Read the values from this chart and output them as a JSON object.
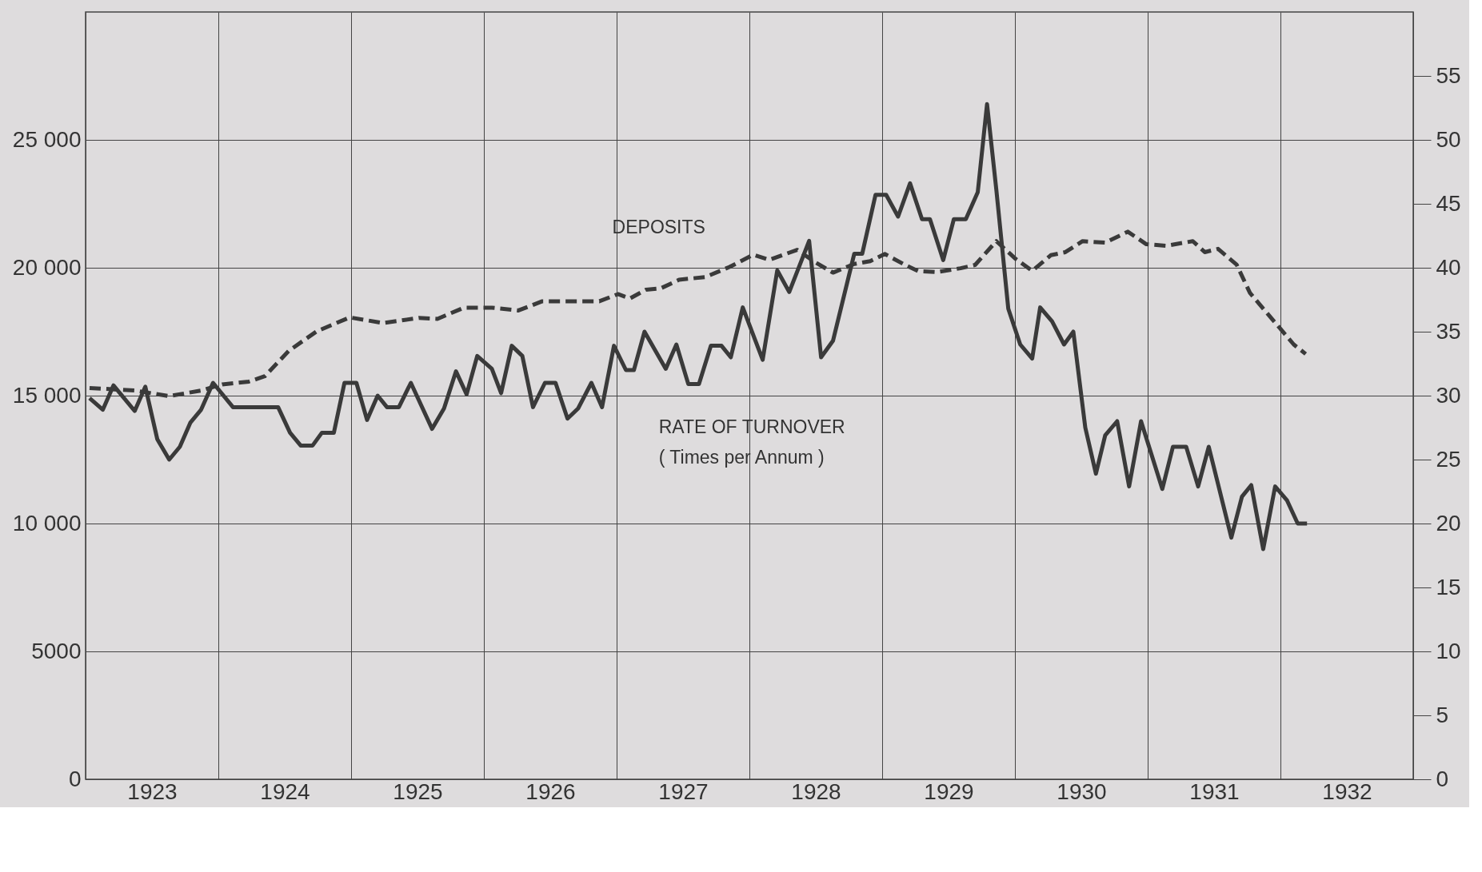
{
  "chart_data": {
    "type": "line",
    "xlim": [
      1923,
      1933
    ],
    "xticks": [
      {
        "value": 1923,
        "label": null
      },
      {
        "value": 1923.5,
        "label": "1923"
      },
      {
        "value": 1924,
        "label": null
      },
      {
        "value": 1924.5,
        "label": "1924"
      },
      {
        "value": 1925,
        "label": null
      },
      {
        "value": 1925.5,
        "label": "1925"
      },
      {
        "value": 1926,
        "label": null
      },
      {
        "value": 1926.5,
        "label": "1926"
      },
      {
        "value": 1927,
        "label": null
      },
      {
        "value": 1927.5,
        "label": "1927"
      },
      {
        "value": 1928,
        "label": null
      },
      {
        "value": 1928.5,
        "label": "1928"
      },
      {
        "value": 1929,
        "label": null
      },
      {
        "value": 1929.5,
        "label": "1929"
      },
      {
        "value": 1930,
        "label": null
      },
      {
        "value": 1930.5,
        "label": "1930"
      },
      {
        "value": 1931,
        "label": null
      },
      {
        "value": 1931.5,
        "label": "1931"
      },
      {
        "value": 1932,
        "label": null
      },
      {
        "value": 1932.5,
        "label": "1932"
      },
      {
        "value": 1933,
        "label": null
      }
    ],
    "ylim": [
      0,
      30000
    ],
    "yticks": [
      0,
      5000,
      {
        "value": 10000,
        "label": "10 000"
      },
      {
        "value": 15000,
        "label": "15 000"
      },
      {
        "value": 20000,
        "label": "20 000"
      },
      {
        "value": 25000,
        "label": "25 000"
      }
    ],
    "y2lim": [
      0,
      60
    ],
    "y2ticks": [
      0,
      5,
      10,
      15,
      20,
      25,
      30,
      35,
      40,
      45,
      50,
      55
    ],
    "grid": true,
    "series": [
      {
        "name": "DEPOSITS",
        "color": "#3a3a3a",
        "line_style": "dashed",
        "x": [
          1923.03,
          1923.37,
          1923.63,
          1923.87,
          1924.03,
          1924.23,
          1924.35,
          1924.53,
          1924.74,
          1924.99,
          1925.24,
          1925.51,
          1925.65,
          1925.85,
          1926.06,
          1926.26,
          1926.44,
          1926.6,
          1926.87,
          1927.01,
          1927.1,
          1927.22,
          1927.33,
          1927.47,
          1927.67,
          1927.85,
          1928.03,
          1928.15,
          1928.36,
          1928.5,
          1928.63,
          1928.79,
          1928.91,
          1929.02,
          1929.18,
          1929.27,
          1929.41,
          1929.59,
          1929.7,
          1929.86,
          1930.0,
          1930.13,
          1930.27,
          1930.38,
          1930.51,
          1930.68,
          1930.85,
          1930.99,
          1931.14,
          1931.34,
          1931.43,
          1931.53,
          1931.67,
          1931.77,
          1931.9,
          1932.0,
          1932.1,
          1932.19
        ],
        "values": [
          15300,
          15200,
          14980,
          15200,
          15440,
          15550,
          15760,
          16750,
          17510,
          18060,
          17840,
          18040,
          18000,
          18440,
          18440,
          18330,
          18690,
          18690,
          18690,
          18970,
          18800,
          19140,
          19190,
          19530,
          19640,
          20030,
          20510,
          20310,
          20700,
          20200,
          19810,
          20150,
          20260,
          20540,
          20090,
          19870,
          19830,
          19980,
          20110,
          21040,
          20370,
          19880,
          20490,
          20610,
          21040,
          20980,
          21410,
          20920,
          20860,
          21040,
          20610,
          20740,
          20120,
          19020,
          18220,
          17610,
          17000,
          16630
        ]
      },
      {
        "name": "RATE OF TURNOVER\n( Times per Annum )",
        "color": "#3a3a3a",
        "line_style": "solid",
        "axis": "y2",
        "x": [
          1923.03,
          1923.13,
          1923.21,
          1923.37,
          1923.45,
          1923.54,
          1923.63,
          1923.71,
          1923.79,
          1923.87,
          1923.96,
          1924.11,
          1924.45,
          1924.54,
          1924.62,
          1924.71,
          1924.78,
          1924.87,
          1924.95,
          1925.04,
          1925.12,
          1925.2,
          1925.27,
          1925.36,
          1925.45,
          1925.61,
          1925.7,
          1925.79,
          1925.87,
          1925.95,
          1926.06,
          1926.13,
          1926.21,
          1926.29,
          1926.37,
          1926.46,
          1926.54,
          1926.63,
          1926.71,
          1926.81,
          1926.89,
          1926.98,
          1927.07,
          1927.13,
          1927.21,
          1927.37,
          1927.45,
          1927.54,
          1927.62,
          1927.71,
          1927.79,
          1927.86,
          1927.95,
          1928.1,
          1928.21,
          1928.3,
          1928.45,
          1928.54,
          1928.63,
          1928.79,
          1928.85,
          1928.95,
          1929.03,
          1929.12,
          1929.21,
          1929.3,
          1929.36,
          1929.46,
          1929.54,
          1929.63,
          1929.72,
          1929.79,
          1929.86,
          1929.95,
          1930.04,
          1930.13,
          1930.19,
          1930.28,
          1930.37,
          1930.44,
          1930.53,
          1930.61,
          1930.68,
          1930.77,
          1930.86,
          1930.95,
          1931.11,
          1931.19,
          1931.29,
          1931.38,
          1931.46,
          1931.63,
          1931.71,
          1931.78,
          1931.87,
          1931.96,
          1932.05,
          1932.13,
          1932.2
        ],
        "values": [
          29.8,
          28.9,
          30.8,
          28.8,
          30.7,
          26.6,
          25.0,
          26.0,
          27.9,
          28.9,
          31.0,
          29.1,
          29.1,
          27.1,
          26.1,
          26.1,
          27.1,
          27.1,
          31.0,
          31.0,
          28.1,
          30.0,
          29.1,
          29.1,
          31.0,
          27.4,
          29.0,
          31.9,
          30.1,
          33.1,
          32.1,
          30.2,
          33.9,
          33.1,
          29.1,
          31.0,
          31.0,
          28.2,
          29.0,
          31.0,
          29.1,
          33.9,
          32.0,
          32.0,
          35.0,
          32.1,
          34.0,
          30.9,
          30.9,
          33.9,
          33.9,
          33.0,
          36.9,
          32.8,
          39.8,
          38.1,
          42.1,
          33.0,
          34.3,
          41.1,
          41.1,
          45.7,
          45.7,
          44.0,
          46.6,
          43.8,
          43.8,
          40.6,
          43.8,
          43.8,
          45.9,
          52.8,
          46.1,
          36.8,
          34.0,
          32.9,
          36.9,
          35.8,
          34.0,
          35.0,
          27.5,
          23.9,
          26.9,
          28.0,
          22.9,
          28.0,
          22.7,
          26.0,
          26.0,
          22.9,
          26.0,
          18.9,
          22.1,
          23.0,
          18.0,
          22.9,
          21.8,
          20.0,
          20.0
        ]
      }
    ]
  }
}
